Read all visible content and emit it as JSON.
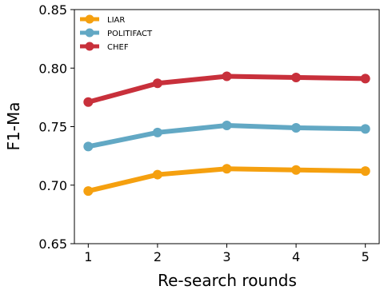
{
  "chart_data": {
    "type": "line",
    "title": "",
    "xlabel": "Re-search rounds",
    "ylabel": "F1-Ma",
    "x": [
      1,
      2,
      3,
      4,
      5
    ],
    "x_tick_labels": [
      "1",
      "2",
      "3",
      "4",
      "5"
    ],
    "xlim": [
      0.8,
      5.2
    ],
    "ylim": [
      0.65,
      0.85
    ],
    "y_ticks": [
      0.65,
      0.7,
      0.75,
      0.8,
      0.85
    ],
    "y_tick_labels": [
      "0.65",
      "0.70",
      "0.75",
      "0.80",
      "0.85"
    ],
    "grid": false,
    "legend_position": "top-left",
    "series": [
      {
        "name": "LIAR",
        "color": "#f5a00f",
        "values": [
          0.695,
          0.709,
          0.714,
          0.713,
          0.712
        ]
      },
      {
        "name": "POLITIFACT",
        "color": "#62a8c4",
        "values": [
          0.733,
          0.745,
          0.751,
          0.749,
          0.748
        ]
      },
      {
        "name": "CHEF",
        "color": "#c8303b",
        "values": [
          0.771,
          0.787,
          0.793,
          0.792,
          0.791
        ]
      }
    ]
  }
}
